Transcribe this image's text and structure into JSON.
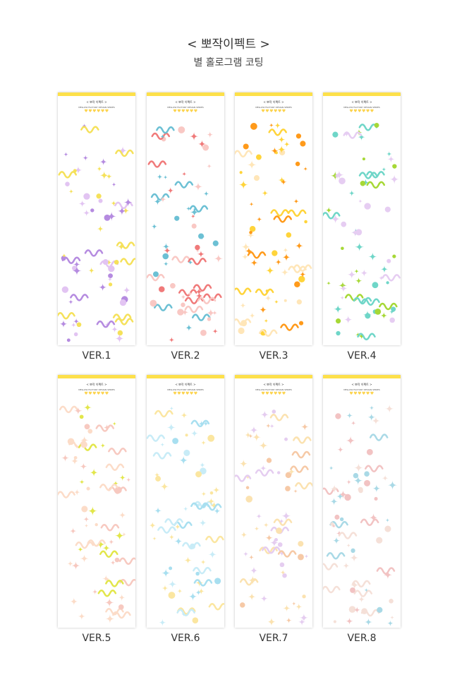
{
  "header": {
    "title": "< 뽀작이펙트 >",
    "subtitle": "별 홀로그램 코팅"
  },
  "sticker_header": {
    "title": "< 뽀작 이펙트 >",
    "brand": "MELLOW FACTORY DESIGN SERIES",
    "hearts": "♥♥♥♥♥♥"
  },
  "versions": [
    {
      "label": "VER.1",
      "colors": [
        "#b58be0",
        "#e2c4f2",
        "#f5e15a"
      ]
    },
    {
      "label": "VER.2",
      "colors": [
        "#f07a7a",
        "#6cc0d4",
        "#f9c8c4"
      ]
    },
    {
      "label": "VER.3",
      "colors": [
        "#ff9a1a",
        "#ffd43a",
        "#ffe6b8"
      ]
    },
    {
      "label": "VER.4",
      "colors": [
        "#6fd6c8",
        "#a6d836",
        "#e6cdf2"
      ]
    },
    {
      "label": "VER.5",
      "colors": [
        "#f7c9c0",
        "#e2e64a",
        "#fcdcc8"
      ]
    },
    {
      "label": "VER.6",
      "colors": [
        "#a8dff0",
        "#fbe6a0",
        "#c8ecf7"
      ]
    },
    {
      "label": "VER.7",
      "colors": [
        "#f6c9a6",
        "#e5cdf0",
        "#fbe2b0"
      ]
    },
    {
      "label": "VER.8",
      "colors": [
        "#a9d9e6",
        "#f2c3c3",
        "#f5e0d8"
      ]
    }
  ]
}
